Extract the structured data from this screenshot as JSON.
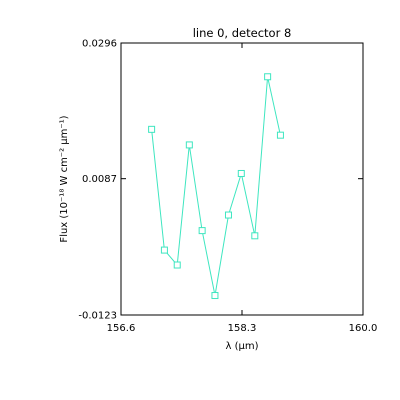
{
  "chart_data": {
    "type": "line",
    "title": "line 0, detector 8",
    "xlabel": "λ (μm)",
    "ylabel": "Flux (10⁻¹⁸ W cm⁻² μm⁻¹)",
    "xlim": [
      156.6,
      160.0
    ],
    "ylim": [
      -0.0123,
      0.0296
    ],
    "x_ticks": [
      156.6,
      158.3,
      160.0
    ],
    "x_tick_labels": [
      "156.6",
      "158.3",
      "160.0"
    ],
    "y_ticks": [
      -0.0123,
      0.0087,
      0.0296
    ],
    "y_tick_labels": [
      "-0.0123",
      "0.0087",
      "0.0296"
    ],
    "grid": false,
    "marker": "square",
    "line_color": "#3ee6c0",
    "series": [
      {
        "x": [
          157.03,
          157.21,
          157.39,
          157.56,
          157.74,
          157.92,
          158.11,
          158.29,
          158.48,
          158.66,
          158.84
        ],
        "y": [
          0.0163,
          -0.0023,
          -0.0046,
          0.0139,
          0.0007,
          -0.0093,
          0.0031,
          0.0095,
          -0.0001,
          0.0244,
          0.0154
        ]
      }
    ]
  }
}
